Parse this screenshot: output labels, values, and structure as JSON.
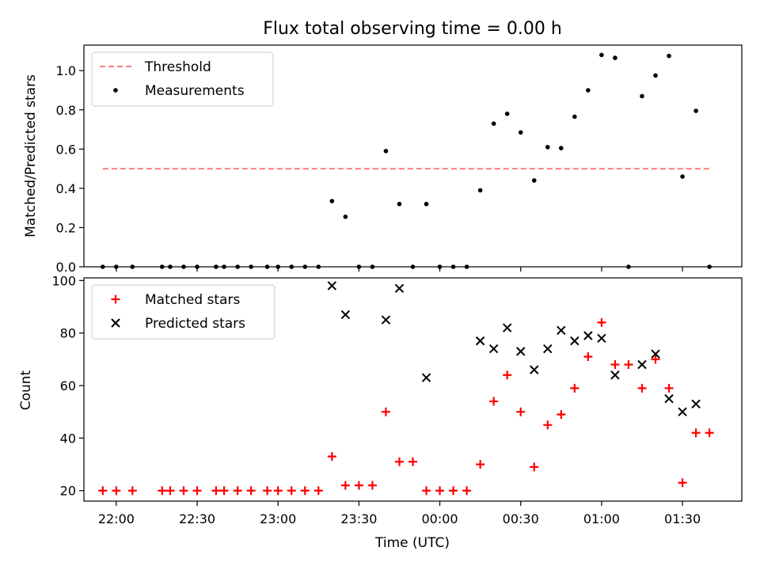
{
  "chart_data": [
    {
      "type": "scatter",
      "title": "Flux total observing time = 0.00 h",
      "xlabel": "",
      "ylabel": "Matched/Predicted stars",
      "xlim": [
        "21:48",
        "01:52"
      ],
      "ylim": [
        0,
        1.13
      ],
      "yticks": [
        "0.0",
        "0.2",
        "0.4",
        "0.6",
        "0.8",
        "1.0"
      ],
      "legend": {
        "position": "top-left"
      },
      "threshold": {
        "name": "Threshold",
        "value": 0.5,
        "x_range": [
          "21:55",
          "01:40"
        ],
        "color": "#ff7f7f",
        "style": "dashed"
      },
      "series": [
        {
          "name": "Measurements",
          "color": "#000000",
          "marker": "dot",
          "points": [
            [
              "21:55",
              0.0
            ],
            [
              "22:00",
              0.0
            ],
            [
              "22:06",
              0.0
            ],
            [
              "22:17",
              0.0
            ],
            [
              "22:20",
              0.0
            ],
            [
              "22:25",
              0.0
            ],
            [
              "22:30",
              0.0
            ],
            [
              "22:37",
              0.0
            ],
            [
              "22:40",
              0.0
            ],
            [
              "22:45",
              0.0
            ],
            [
              "22:50",
              0.0
            ],
            [
              "22:56",
              0.0
            ],
            [
              "23:00",
              0.0
            ],
            [
              "23:05",
              0.0
            ],
            [
              "23:10",
              0.0
            ],
            [
              "23:15",
              0.0
            ],
            [
              "23:20",
              0.335
            ],
            [
              "23:25",
              0.255
            ],
            [
              "23:30",
              0.0
            ],
            [
              "23:35",
              0.0
            ],
            [
              "23:40",
              0.59
            ],
            [
              "23:45",
              0.32
            ],
            [
              "23:50",
              0.0
            ],
            [
              "23:55",
              0.32
            ],
            [
              "00:00",
              0.0
            ],
            [
              "00:05",
              0.0
            ],
            [
              "00:10",
              0.0
            ],
            [
              "00:15",
              0.39
            ],
            [
              "00:20",
              0.73
            ],
            [
              "00:25",
              0.78
            ],
            [
              "00:30",
              0.685
            ],
            [
              "00:35",
              0.44
            ],
            [
              "00:40",
              0.61
            ],
            [
              "00:45",
              0.605
            ],
            [
              "00:50",
              0.765
            ],
            [
              "00:55",
              0.9
            ],
            [
              "01:00",
              1.08
            ],
            [
              "01:05",
              1.065
            ],
            [
              "01:10",
              0.0
            ],
            [
              "01:15",
              0.87
            ],
            [
              "01:20",
              0.975
            ],
            [
              "01:25",
              1.075
            ],
            [
              "01:30",
              0.46
            ],
            [
              "01:35",
              0.795
            ],
            [
              "01:40",
              0.0
            ]
          ]
        }
      ]
    },
    {
      "type": "scatter",
      "title": "",
      "xlabel": "Time (UTC)",
      "ylabel": "Count",
      "xlim": [
        "21:48",
        "01:52"
      ],
      "ylim": [
        16,
        101
      ],
      "yticks": [
        "20",
        "40",
        "60",
        "80",
        "100"
      ],
      "xticks": [
        "22:00",
        "22:30",
        "23:00",
        "23:30",
        "00:00",
        "00:30",
        "01:00",
        "01:30"
      ],
      "legend": {
        "position": "top-left"
      },
      "series": [
        {
          "name": "Matched stars",
          "color": "#ff0000",
          "marker": "plus",
          "points": [
            [
              "21:55",
              20
            ],
            [
              "22:00",
              20
            ],
            [
              "22:06",
              20
            ],
            [
              "22:17",
              20
            ],
            [
              "22:20",
              20
            ],
            [
              "22:25",
              20
            ],
            [
              "22:30",
              20
            ],
            [
              "22:37",
              20
            ],
            [
              "22:40",
              20
            ],
            [
              "22:45",
              20
            ],
            [
              "22:50",
              20
            ],
            [
              "22:56",
              20
            ],
            [
              "23:00",
              20
            ],
            [
              "23:05",
              20
            ],
            [
              "23:10",
              20
            ],
            [
              "23:15",
              20
            ],
            [
              "23:20",
              33
            ],
            [
              "23:25",
              22
            ],
            [
              "23:30",
              22
            ],
            [
              "23:35",
              22
            ],
            [
              "23:40",
              50
            ],
            [
              "23:45",
              31
            ],
            [
              "23:50",
              31
            ],
            [
              "23:55",
              20
            ],
            [
              "00:00",
              20
            ],
            [
              "00:05",
              20
            ],
            [
              "00:10",
              20
            ],
            [
              "00:15",
              30
            ],
            [
              "00:20",
              54
            ],
            [
              "00:25",
              64
            ],
            [
              "00:30",
              50
            ],
            [
              "00:35",
              29
            ],
            [
              "00:40",
              45
            ],
            [
              "00:45",
              49
            ],
            [
              "00:50",
              59
            ],
            [
              "00:55",
              71
            ],
            [
              "01:00",
              84
            ],
            [
              "01:05",
              68
            ],
            [
              "01:10",
              68
            ],
            [
              "01:15",
              59
            ],
            [
              "01:20",
              70
            ],
            [
              "01:25",
              59
            ],
            [
              "01:30",
              23
            ],
            [
              "01:35",
              42
            ],
            [
              "01:40",
              42
            ]
          ]
        },
        {
          "name": "Predicted stars",
          "color": "#000000",
          "marker": "x",
          "points": [
            [
              "23:20",
              98
            ],
            [
              "23:25",
              87
            ],
            [
              "23:40",
              85
            ],
            [
              "23:45",
              97
            ],
            [
              "23:55",
              63
            ],
            [
              "00:15",
              77
            ],
            [
              "00:20",
              74
            ],
            [
              "00:25",
              82
            ],
            [
              "00:30",
              73
            ],
            [
              "00:35",
              66
            ],
            [
              "00:40",
              74
            ],
            [
              "00:45",
              81
            ],
            [
              "00:50",
              77
            ],
            [
              "00:55",
              79
            ],
            [
              "01:00",
              78
            ],
            [
              "01:05",
              64
            ],
            [
              "01:15",
              68
            ],
            [
              "01:20",
              72
            ],
            [
              "01:25",
              55
            ],
            [
              "01:30",
              50
            ],
            [
              "01:35",
              53
            ]
          ]
        }
      ]
    }
  ]
}
